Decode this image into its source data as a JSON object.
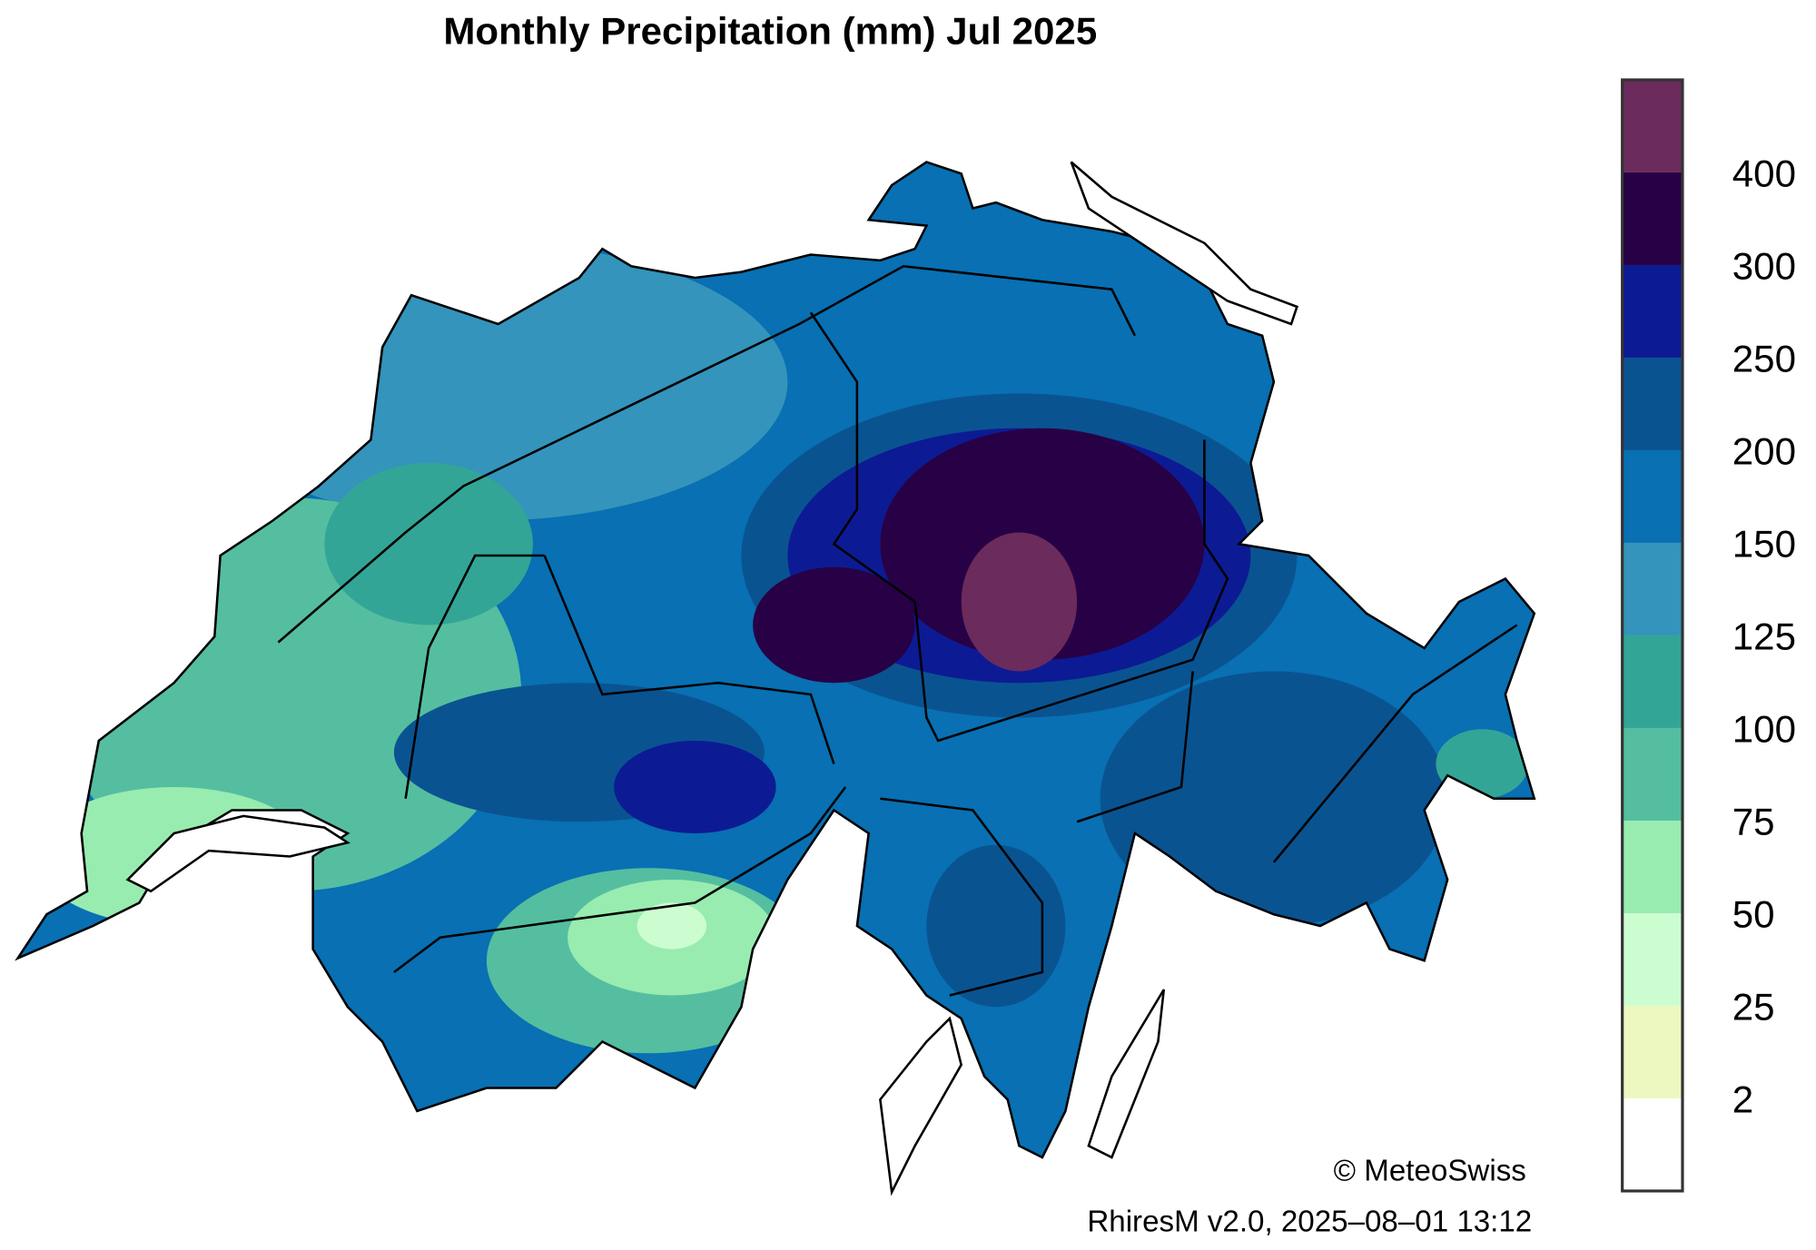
{
  "chart_data": {
    "type": "heatmap",
    "title": "Monthly Precipitation (mm) Jul 2025",
    "region": "Switzerland",
    "colorbar": {
      "levels": [
        "2",
        "25",
        "50",
        "75",
        "100",
        "125",
        "150",
        "200",
        "250",
        "300",
        "400"
      ],
      "colors": [
        "#ffffff",
        "#edf8c0",
        "#ccfdd0",
        "#98ecb0",
        "#55bea0",
        "#33a596",
        "#3494bb",
        "#0870b3",
        "#0a5391",
        "#0c1b94",
        "#280046",
        "#6b2b5c"
      ]
    },
    "copyright": "© MeteoSwiss",
    "footer": "RhiresM v2.0, 2025–08–01 13:12"
  }
}
